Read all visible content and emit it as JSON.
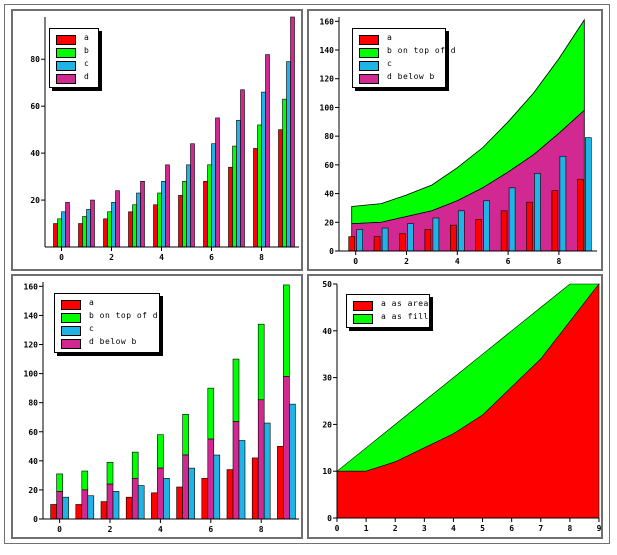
{
  "chart_data": [
    {
      "type": "bar",
      "x": [
        0,
        1,
        2,
        3,
        4,
        5,
        6,
        7,
        8,
        9
      ],
      "xticks": [
        "0",
        "2",
        "4",
        "6",
        "8"
      ],
      "yticks": [
        "20",
        "40",
        "60",
        "80"
      ],
      "ylim": [
        0,
        98
      ],
      "series": [
        {
          "name": "a",
          "color": "#ff0000",
          "values": [
            10,
            10,
            12,
            15,
            18,
            22,
            28,
            34,
            42,
            50
          ]
        },
        {
          "name": "b",
          "color": "#00ff00",
          "values": [
            12,
            13,
            15,
            18,
            23,
            28,
            35,
            43,
            52,
            63
          ]
        },
        {
          "name": "c",
          "color": "#1eb4e6",
          "values": [
            15,
            16,
            19,
            23,
            28,
            35,
            44,
            54,
            66,
            79
          ]
        },
        {
          "name": "d",
          "color": "#d22892",
          "values": [
            19,
            20,
            24,
            28,
            35,
            44,
            55,
            67,
            82,
            98
          ]
        }
      ],
      "legend": "top-left"
    },
    {
      "type": "area",
      "x": [
        0,
        1,
        2,
        3,
        4,
        5,
        6,
        7,
        8,
        9
      ],
      "xticks": [
        "0",
        "2",
        "4",
        "6",
        "8"
      ],
      "yticks": [
        "0",
        "20",
        "40",
        "60",
        "80",
        "100",
        "120",
        "140",
        "160"
      ],
      "ylim": [
        0,
        163
      ],
      "series": [
        {
          "name": "a",
          "color": "#ff0000",
          "display": "bars",
          "values": [
            10,
            10,
            12,
            15,
            18,
            22,
            28,
            34,
            42,
            50
          ]
        },
        {
          "name": "b on top of d",
          "color": "#00ff00",
          "display": "stacked-area",
          "values": [
            12,
            13,
            15,
            18,
            23,
            28,
            35,
            43,
            52,
            63
          ]
        },
        {
          "name": "c",
          "color": "#1eb4e6",
          "display": "bars",
          "values": [
            15,
            16,
            19,
            23,
            28,
            35,
            44,
            54,
            66,
            79
          ]
        },
        {
          "name": "d below b",
          "color": "#d22892",
          "display": "area",
          "values": [
            19,
            20,
            24,
            28,
            35,
            44,
            55,
            67,
            82,
            98
          ]
        }
      ],
      "legend": "top-left"
    },
    {
      "type": "bar",
      "x": [
        0,
        1,
        2,
        3,
        4,
        5,
        6,
        7,
        8,
        9
      ],
      "xticks": [
        "0",
        "2",
        "4",
        "6",
        "8"
      ],
      "yticks": [
        "0",
        "20",
        "40",
        "60",
        "80",
        "100",
        "120",
        "140",
        "160"
      ],
      "ylim": [
        0,
        163
      ],
      "series": [
        {
          "name": "a",
          "color": "#ff0000",
          "display": "bars",
          "values": [
            10,
            10,
            12,
            15,
            18,
            22,
            28,
            34,
            42,
            50
          ]
        },
        {
          "name": "b on top of d",
          "color": "#00ff00",
          "display": "stacked-bars",
          "values": [
            12,
            13,
            15,
            18,
            23,
            28,
            35,
            43,
            52,
            63
          ]
        },
        {
          "name": "c",
          "color": "#1eb4e6",
          "display": "bars",
          "values": [
            15,
            16,
            19,
            23,
            28,
            35,
            44,
            54,
            66,
            79
          ]
        },
        {
          "name": "d below b",
          "color": "#d22892",
          "display": "bars",
          "values": [
            19,
            20,
            24,
            28,
            35,
            44,
            55,
            67,
            82,
            98
          ]
        }
      ],
      "legend": "top-left"
    },
    {
      "type": "area",
      "x": [
        0,
        1,
        2,
        3,
        4,
        5,
        6,
        7,
        8,
        9
      ],
      "xticks": [
        "0",
        "1",
        "2",
        "3",
        "4",
        "5",
        "6",
        "7",
        "8",
        "9"
      ],
      "yticks": [
        "0",
        "10",
        "20",
        "30",
        "40",
        "50"
      ],
      "ylim": [
        0,
        50
      ],
      "series": [
        {
          "name": "a as area",
          "color": "#ff0000",
          "values": [
            10,
            10,
            12,
            15,
            18,
            22,
            28,
            34,
            42,
            50
          ]
        },
        {
          "name": "a as fill",
          "color": "#00ff00",
          "values": [
            10,
            15,
            20,
            25,
            30,
            35,
            40,
            45,
            50,
            50
          ]
        }
      ],
      "legend": "top-left"
    }
  ]
}
